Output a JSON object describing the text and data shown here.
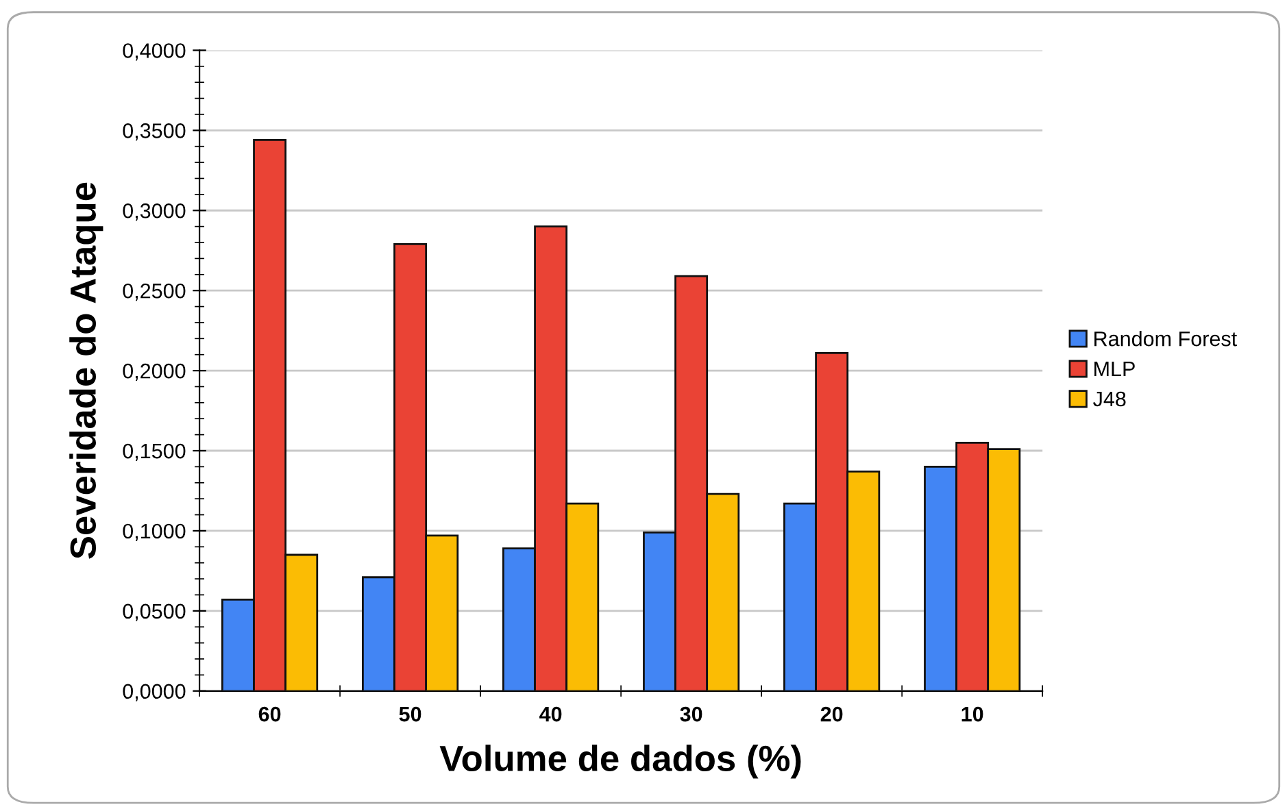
{
  "chart_data": {
    "type": "bar",
    "xlabel": "Volume de dados (%)",
    "ylabel": "Severidade do Ataque",
    "categories": [
      "60",
      "50",
      "40",
      "30",
      "20",
      "10"
    ],
    "series": [
      {
        "name": "Random Forest",
        "color": "#4285f4",
        "values": [
          0.057,
          0.071,
          0.089,
          0.099,
          0.117,
          0.14
        ]
      },
      {
        "name": "MLP",
        "color": "#ea4335",
        "values": [
          0.344,
          0.279,
          0.29,
          0.259,
          0.211,
          0.155
        ]
      },
      {
        "name": "J48",
        "color": "#fbbc04",
        "values": [
          0.085,
          0.097,
          0.117,
          0.123,
          0.137,
          0.151
        ]
      }
    ],
    "ylim": [
      0,
      0.4
    ],
    "yticks": [
      {
        "value": 0,
        "label": "0,0000"
      },
      {
        "value": 0.05,
        "label": "0,0500"
      },
      {
        "value": 0.1,
        "label": "0,1000"
      },
      {
        "value": 0.15,
        "label": "0,1500"
      },
      {
        "value": 0.2,
        "label": "0,2000"
      },
      {
        "value": 0.25,
        "label": "0,2500"
      },
      {
        "value": 0.3,
        "label": "0,3000"
      },
      {
        "value": 0.35,
        "label": "0,3500"
      },
      {
        "value": 0.4,
        "label": "0,4000"
      }
    ],
    "grid": "y",
    "legend": "right"
  }
}
